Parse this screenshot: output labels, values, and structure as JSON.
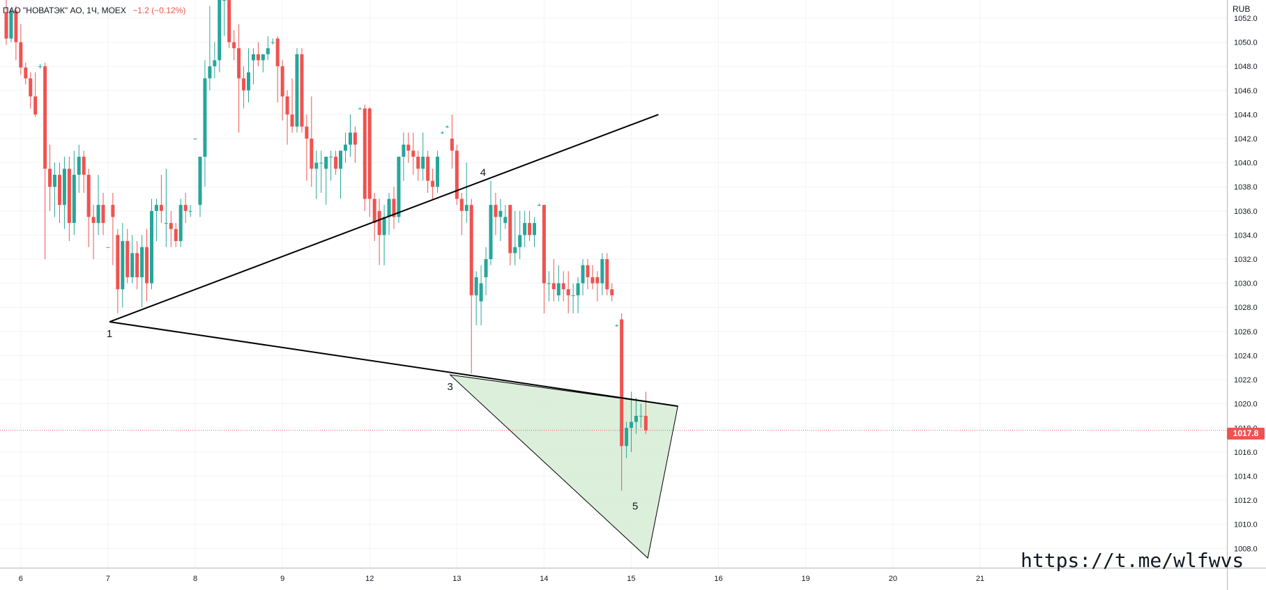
{
  "header": {
    "symbol_line": "ПАО \"НОВАТЭК\" АО, 1Ч, MOEX",
    "change": "−1.2 (−0.12%)"
  },
  "axis": {
    "currency": "RUB",
    "last_price_label": "1017.8"
  },
  "watermark": "https://t.me/wlfwvs",
  "colors": {
    "up": "#26a69a",
    "down": "#ef5350",
    "line": "#000000",
    "fill": "#d5ecd4",
    "grid": "#f0f3fa",
    "price_line": "#ef5350"
  },
  "chart_data": {
    "type": "candlestick",
    "title": "ПАО \"НОВАТЭК\" АО, 1Ч, MOEX",
    "ylabel": "RUB",
    "ylim": [
      1006.4,
      1053.5
    ],
    "y_ticks": [
      1008.0,
      1010.0,
      1012.0,
      1014.0,
      1016.0,
      1018.0,
      1020.0,
      1022.0,
      1024.0,
      1026.0,
      1028.0,
      1030.0,
      1032.0,
      1034.0,
      1036.0,
      1038.0,
      1040.0,
      1042.0,
      1044.0,
      1046.0,
      1048.0,
      1050.0,
      1052.0
    ],
    "x_ticks": [
      {
        "label": "6",
        "i": 3
      },
      {
        "label": "7",
        "i": 21
      },
      {
        "label": "8",
        "i": 39
      },
      {
        "label": "9",
        "i": 57
      },
      {
        "label": "12",
        "i": 75
      },
      {
        "label": "13",
        "i": 93
      },
      {
        "label": "14",
        "i": 111
      },
      {
        "label": "15",
        "i": 129
      },
      {
        "label": "16",
        "i": 147
      },
      {
        "label": "19",
        "i": 165
      },
      {
        "label": "20",
        "i": 183
      },
      {
        "label": "21",
        "i": 201
      }
    ],
    "last_price": 1017.8,
    "candles": [
      [
        1052.5,
        1053.5,
        1049.8,
        1050.3
      ],
      [
        1050.3,
        1052.8,
        1050.0,
        1052.6
      ],
      [
        1052.6,
        1053.0,
        1048.5,
        1050.0
      ],
      [
        1050.0,
        1051.5,
        1047.3,
        1047.9
      ],
      [
        1047.9,
        1048.3,
        1046.5,
        1047.0
      ],
      [
        1047.0,
        1047.5,
        1044.5,
        1045.5
      ],
      [
        1045.5,
        1047.5,
        1043.8,
        1044.0
      ],
      [
        1048.0,
        1048.2,
        1047.8,
        1048.0
      ],
      [
        1048.0,
        1048.3,
        1032.0,
        1039.5
      ],
      [
        1039.5,
        1041.5,
        1036.0,
        1038.0
      ],
      [
        1038.0,
        1040.0,
        1035.5,
        1039.0
      ],
      [
        1039.0,
        1040.0,
        1035.0,
        1036.5
      ],
      [
        1036.5,
        1040.5,
        1034.5,
        1039.5
      ],
      [
        1039.5,
        1040.5,
        1033.5,
        1035.0
      ],
      [
        1035.0,
        1041.0,
        1034.0,
        1039.0
      ],
      [
        1039.0,
        1041.5,
        1037.5,
        1040.5
      ],
      [
        1040.5,
        1041.0,
        1037.5,
        1039.0
      ],
      [
        1039.0,
        1039.5,
        1033.0,
        1035.5
      ],
      [
        1035.5,
        1036.5,
        1032.0,
        1035.0
      ],
      [
        1035.0,
        1039.0,
        1034.0,
        1036.5
      ],
      [
        1036.5,
        1037.5,
        1034.0,
        1035.0
      ],
      [
        1033.0,
        1033.0,
        1033.0,
        1033.0
      ],
      [
        1036.5,
        1037.5,
        1031.5,
        1035.5
      ],
      [
        1034.0,
        1034.5,
        1027.5,
        1029.5
      ],
      [
        1029.5,
        1035.0,
        1028.0,
        1033.5
      ],
      [
        1033.5,
        1034.5,
        1030.0,
        1030.5
      ],
      [
        1030.5,
        1034.0,
        1030.0,
        1032.5
      ],
      [
        1032.5,
        1033.5,
        1029.5,
        1030.5
      ],
      [
        1030.5,
        1034.0,
        1028.0,
        1033.0
      ],
      [
        1033.0,
        1034.5,
        1028.5,
        1030.0
      ],
      [
        1030.0,
        1037.0,
        1029.5,
        1036.0
      ],
      [
        1036.0,
        1037.0,
        1033.5,
        1036.5
      ],
      [
        1036.5,
        1039.0,
        1035.0,
        1036.0
      ],
      [
        1035.0,
        1039.5,
        1033.0,
        1035.0
      ],
      [
        1035.0,
        1036.0,
        1033.0,
        1034.5
      ],
      [
        1034.5,
        1035.0,
        1033.0,
        1033.5
      ],
      [
        1033.5,
        1037.0,
        1033.0,
        1036.5
      ],
      [
        1036.5,
        1037.5,
        1035.0,
        1036.0
      ],
      [
        1036.0,
        1036.5,
        1035.5,
        1036.0
      ],
      [
        1042.0,
        1042.0,
        1042.0,
        1042.0
      ],
      [
        1036.5,
        1040.5,
        1035.5,
        1040.5
      ],
      [
        1040.5,
        1048.5,
        1038.0,
        1047.0
      ],
      [
        1047.0,
        1053.0,
        1046.0,
        1048.0
      ],
      [
        1048.0,
        1050.0,
        1047.0,
        1048.5
      ],
      [
        1048.5,
        1053.5,
        1047.5,
        1053.5
      ],
      [
        1053.5,
        1053.5,
        1050.5,
        1053.5
      ],
      [
        1053.5,
        1053.5,
        1049.5,
        1050.0
      ],
      [
        1050.0,
        1051.0,
        1048.5,
        1049.5
      ],
      [
        1049.5,
        1051.5,
        1042.5,
        1047.0
      ],
      [
        1047.0,
        1048.0,
        1044.5,
        1046.0
      ],
      [
        1046.0,
        1049.5,
        1045.0,
        1047.5
      ],
      [
        1048.5,
        1049.5,
        1046.5,
        1049.0
      ],
      [
        1049.0,
        1050.0,
        1048.0,
        1048.5
      ],
      [
        1048.5,
        1049.0,
        1047.5,
        1049.0
      ],
      [
        1049.0,
        1050.5,
        1048.5,
        1049.5
      ],
      [
        1050.0,
        1050.3,
        1049.8,
        1050.0
      ],
      [
        1050.3,
        1050.5,
        1045.0,
        1048.0
      ],
      [
        1048.0,
        1048.5,
        1043.5,
        1045.5
      ],
      [
        1045.5,
        1046.0,
        1041.5,
        1044.0
      ],
      [
        1044.0,
        1047.0,
        1042.5,
        1043.0
      ],
      [
        1043.0,
        1049.5,
        1042.5,
        1049.0
      ],
      [
        1049.0,
        1049.5,
        1042.5,
        1043.0
      ],
      [
        1043.0,
        1044.0,
        1038.5,
        1042.0
      ],
      [
        1042.0,
        1045.5,
        1038.0,
        1039.5
      ],
      [
        1039.5,
        1041.0,
        1037.0,
        1040.0
      ],
      [
        1040.0,
        1041.0,
        1037.5,
        1040.0
      ],
      [
        1039.5,
        1040.5,
        1036.5,
        1040.5
      ],
      [
        1040.5,
        1041.0,
        1038.5,
        1040.5
      ],
      [
        1040.5,
        1041.0,
        1039.0,
        1039.5
      ],
      [
        1039.5,
        1041.0,
        1037.0,
        1041.0
      ],
      [
        1041.0,
        1042.5,
        1040.0,
        1041.5
      ],
      [
        1041.5,
        1044.0,
        1040.5,
        1042.5
      ],
      [
        1042.5,
        1043.0,
        1040.0,
        1041.5
      ],
      [
        1044.5,
        1044.6,
        1044.4,
        1044.5
      ],
      [
        1044.5,
        1044.8,
        1036.0,
        1037.0
      ],
      [
        1044.5,
        1044.6,
        1035.5,
        1037.0
      ],
      [
        1037.0,
        1037.5,
        1033.5,
        1035.0
      ],
      [
        1036.0,
        1037.0,
        1031.5,
        1034.0
      ],
      [
        1034.0,
        1036.5,
        1031.5,
        1035.5
      ],
      [
        1035.5,
        1037.5,
        1034.0,
        1037.0
      ],
      [
        1037.0,
        1038.0,
        1034.5,
        1035.5
      ],
      [
        1035.5,
        1040.5,
        1035.0,
        1040.5
      ],
      [
        1040.5,
        1042.5,
        1038.5,
        1041.5
      ],
      [
        1041.5,
        1042.5,
        1040.0,
        1041.0
      ],
      [
        1041.0,
        1042.5,
        1039.0,
        1040.5
      ],
      [
        1040.5,
        1041.0,
        1038.5,
        1039.5
      ],
      [
        1039.5,
        1042.5,
        1038.5,
        1040.5
      ],
      [
        1040.5,
        1041.0,
        1037.5,
        1038.5
      ],
      [
        1038.5,
        1039.5,
        1037.0,
        1038.0
      ],
      [
        1038.0,
        1041.0,
        1037.5,
        1040.5
      ],
      [
        1042.5,
        1042.6,
        1042.4,
        1042.5
      ],
      [
        1043.0,
        1043.1,
        1042.9,
        1043.0
      ],
      [
        1042.0,
        1044.0,
        1039.5,
        1041.0
      ],
      [
        1041.0,
        1041.5,
        1036.5,
        1037.0
      ],
      [
        1037.0,
        1037.5,
        1034.0,
        1036.0
      ],
      [
        1036.0,
        1040.0,
        1035.0,
        1036.5
      ],
      [
        1036.5,
        1037.0,
        1022.5,
        1029.0
      ],
      [
        1029.0,
        1031.0,
        1026.5,
        1030.5
      ],
      [
        1028.5,
        1031.5,
        1026.5,
        1030.0
      ],
      [
        1030.5,
        1033.0,
        1029.0,
        1032.0
      ],
      [
        1032.0,
        1038.5,
        1031.5,
        1036.5
      ],
      [
        1036.5,
        1037.5,
        1034.0,
        1035.5
      ],
      [
        1035.5,
        1037.0,
        1033.5,
        1036.0
      ],
      [
        1035.0,
        1036.5,
        1034.5,
        1035.5
      ],
      [
        1036.5,
        1036.5,
        1031.5,
        1032.5
      ],
      [
        1032.5,
        1036.0,
        1031.5,
        1033.0
      ],
      [
        1033.0,
        1036.0,
        1032.0,
        1034.0
      ],
      [
        1034.0,
        1036.0,
        1033.0,
        1035.0
      ],
      [
        1035.0,
        1036.0,
        1033.5,
        1034.0
      ],
      [
        1034.0,
        1035.5,
        1033.0,
        1035.0
      ],
      [
        1036.5,
        1036.6,
        1036.4,
        1036.5
      ],
      [
        1036.5,
        1036.5,
        1027.5,
        1030.0
      ],
      [
        1030.0,
        1031.0,
        1028.5,
        1030.0
      ],
      [
        1030.0,
        1032.0,
        1028.5,
        1029.5
      ],
      [
        1029.0,
        1031.5,
        1028.5,
        1030.0
      ],
      [
        1030.0,
        1031.0,
        1028.5,
        1029.5
      ],
      [
        1029.5,
        1031.0,
        1027.5,
        1029.0
      ],
      [
        1029.0,
        1030.0,
        1027.5,
        1029.0
      ],
      [
        1029.0,
        1030.5,
        1027.5,
        1030.0
      ],
      [
        1030.0,
        1032.0,
        1029.0,
        1031.5
      ],
      [
        1031.5,
        1032.0,
        1029.5,
        1030.5
      ],
      [
        1030.5,
        1031.5,
        1029.5,
        1030.0
      ],
      [
        1030.5,
        1031.0,
        1028.5,
        1030.0
      ],
      [
        1030.0,
        1032.5,
        1029.0,
        1032.0
      ],
      [
        1032.0,
        1032.5,
        1029.0,
        1029.5
      ],
      [
        1029.5,
        1030.0,
        1028.5,
        1029.0
      ],
      [
        1026.5,
        1026.6,
        1026.4,
        1026.5
      ],
      [
        1027.0,
        1027.5,
        1012.8,
        1016.5
      ],
      [
        1016.5,
        1018.5,
        1015.5,
        1018.0
      ],
      [
        1018.0,
        1021.0,
        1016.0,
        1018.5
      ],
      [
        1018.5,
        1020.5,
        1017.5,
        1019.0
      ],
      [
        1019.0,
        1020.0,
        1018.0,
        1019.0
      ],
      [
        1019.0,
        1021.0,
        1017.5,
        1017.8
      ]
    ],
    "drawing": {
      "points": [
        {
          "label": "1",
          "i": 21.3,
          "price": 1026.8
        },
        {
          "label": "3",
          "i": 91.6,
          "price": 1022.4
        },
        {
          "label": "4",
          "i": 98.4,
          "price": 1038.2
        },
        {
          "label": "5",
          "i": 129.8,
          "price": 1012.5
        }
      ],
      "upper_line": {
        "from": {
          "i": 21.3,
          "price": 1026.8
        },
        "to": {
          "i": 134.6,
          "price": 1044.0
        }
      },
      "lower_line": {
        "from": {
          "i": 21.3,
          "price": 1026.8
        },
        "to": {
          "i": 138.6,
          "price": 1019.8
        }
      },
      "triangle": [
        {
          "i": 91.6,
          "price": 1022.4
        },
        {
          "i": 138.6,
          "price": 1019.8
        },
        {
          "i": 132.4,
          "price": 1007.2
        }
      ]
    }
  }
}
